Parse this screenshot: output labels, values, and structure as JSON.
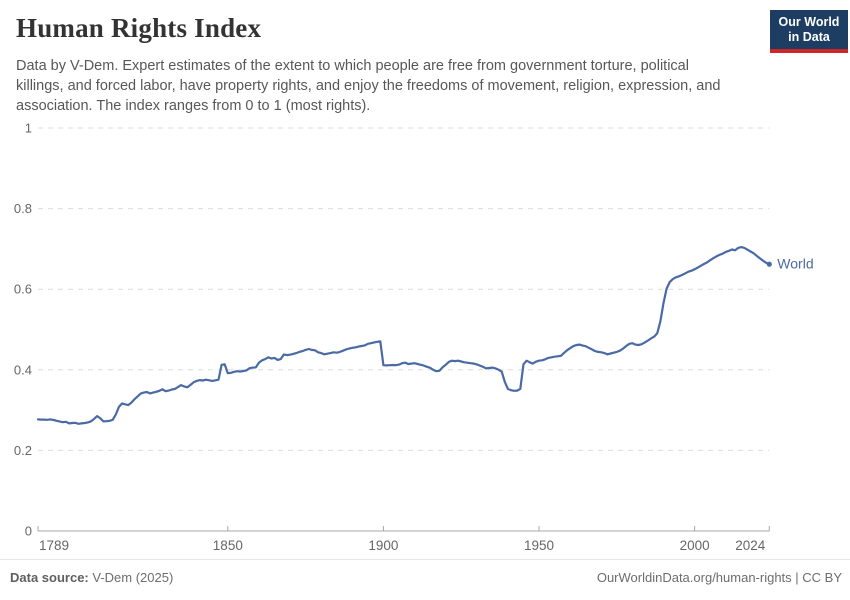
{
  "header": {
    "title": "Human Rights Index",
    "subtitle_lines": [
      "Data by V-Dem. Expert estimates of the extent to which people are free from government torture, political",
      "killings, and forced labor, have property rights, and enjoy the freedoms of movement, religion, expression, and",
      "association. The index ranges from 0 to 1 (most rights)."
    ],
    "logo": {
      "line1": "Our World",
      "line2": "in Data"
    }
  },
  "footer": {
    "source_label": "Data source:",
    "source_value": "V-Dem (2025)",
    "credit": "OurWorldinData.org/human-rights | CC BY"
  },
  "colors": {
    "accent_line": "#4a6aa5",
    "logo_navy": "#1d3d63",
    "logo_red": "#cc2626",
    "grid": "#dcdcdc",
    "axis": "#a8a8a8",
    "tick_text": "#666666"
  },
  "chart_data": {
    "type": "line",
    "title": "Human Rights Index",
    "xlabel": "",
    "ylabel": "",
    "x_start_year": 1789,
    "x_end_year": 2024,
    "ylim": [
      0,
      1
    ],
    "grid": "horizontal-dashed",
    "legend_position": "end-of-line-label",
    "yticks": [
      {
        "v": 0,
        "label": "0"
      },
      {
        "v": 0.2,
        "label": "0.2"
      },
      {
        "v": 0.4,
        "label": "0.4"
      },
      {
        "v": 0.6,
        "label": "0.6"
      },
      {
        "v": 0.8,
        "label": "0.8"
      },
      {
        "v": 1,
        "label": "1"
      }
    ],
    "xticks": [
      {
        "year": 1789,
        "label": "1789",
        "align": "start"
      },
      {
        "year": 1850,
        "label": "1850",
        "align": "middle"
      },
      {
        "year": 1900,
        "label": "1900",
        "align": "middle"
      },
      {
        "year": 1950,
        "label": "1950",
        "align": "middle"
      },
      {
        "year": 2000,
        "label": "2000",
        "align": "middle"
      },
      {
        "year": 2024,
        "label": "2024",
        "align": "end"
      }
    ],
    "series": [
      {
        "name": "World",
        "color": "#4a6aa5",
        "values": [
          0.277,
          0.2765,
          0.2765,
          0.276,
          0.277,
          0.2755,
          0.2735,
          0.2715,
          0.27,
          0.271,
          0.267,
          0.268,
          0.2685,
          0.266,
          0.267,
          0.268,
          0.2695,
          0.272,
          0.278,
          0.285,
          0.28,
          0.272,
          0.2725,
          0.2735,
          0.276,
          0.289,
          0.308,
          0.3165,
          0.3145,
          0.3125,
          0.3185,
          0.327,
          0.334,
          0.341,
          0.3435,
          0.345,
          0.3415,
          0.3435,
          0.3455,
          0.348,
          0.3515,
          0.347,
          0.3485,
          0.351,
          0.3525,
          0.357,
          0.362,
          0.3585,
          0.3565,
          0.3625,
          0.369,
          0.3725,
          0.3745,
          0.3735,
          0.3755,
          0.374,
          0.3725,
          0.374,
          0.3755,
          0.4125,
          0.4135,
          0.3915,
          0.3925,
          0.395,
          0.3965,
          0.3955,
          0.397,
          0.3985,
          0.404,
          0.4055,
          0.406,
          0.4175,
          0.4235,
          0.4265,
          0.431,
          0.428,
          0.4295,
          0.4245,
          0.4265,
          0.438,
          0.4365,
          0.4375,
          0.4395,
          0.4415,
          0.4445,
          0.4465,
          0.4495,
          0.4515,
          0.4495,
          0.4485,
          0.4435,
          0.4415,
          0.4385,
          0.44,
          0.4415,
          0.4435,
          0.4425,
          0.4445,
          0.4475,
          0.4505,
          0.4525,
          0.4545,
          0.4555,
          0.4575,
          0.459,
          0.4605,
          0.4645,
          0.466,
          0.468,
          0.4695,
          0.4705,
          0.4115,
          0.411,
          0.4115,
          0.412,
          0.4115,
          0.413,
          0.4165,
          0.4175,
          0.4145,
          0.4155,
          0.4165,
          0.4145,
          0.4125,
          0.4105,
          0.4075,
          0.405,
          0.4,
          0.3965,
          0.3975,
          0.406,
          0.4125,
          0.4195,
          0.4225,
          0.4215,
          0.4225,
          0.4205,
          0.4185,
          0.4175,
          0.4165,
          0.4155,
          0.4135,
          0.4105,
          0.4075,
          0.4035,
          0.4045,
          0.4055,
          0.4035,
          0.4,
          0.3955,
          0.37,
          0.3525,
          0.3495,
          0.348,
          0.3485,
          0.3525,
          0.414,
          0.4225,
          0.4185,
          0.4155,
          0.42,
          0.4225,
          0.4235,
          0.426,
          0.4295,
          0.431,
          0.4325,
          0.4335,
          0.4345,
          0.4415,
          0.4485,
          0.4535,
          0.4585,
          0.4615,
          0.4625,
          0.46,
          0.4585,
          0.4545,
          0.4505,
          0.4465,
          0.4445,
          0.4435,
          0.4415,
          0.4385,
          0.4405,
          0.4425,
          0.4445,
          0.4475,
          0.4525,
          0.459,
          0.4645,
          0.466,
          0.4625,
          0.4615,
          0.4635,
          0.468,
          0.4725,
          0.478,
          0.4825,
          0.491,
          0.5205,
          0.5655,
          0.6015,
          0.6175,
          0.625,
          0.6295,
          0.632,
          0.6355,
          0.6395,
          0.6435,
          0.646,
          0.6495,
          0.6535,
          0.658,
          0.6625,
          0.6665,
          0.672,
          0.677,
          0.6815,
          0.685,
          0.688,
          0.6925,
          0.695,
          0.6985,
          0.6965,
          0.7025,
          0.7045,
          0.7025,
          0.698,
          0.6935,
          0.689,
          0.6825,
          0.6765,
          0.6705,
          0.6655,
          0.662
        ]
      }
    ]
  }
}
